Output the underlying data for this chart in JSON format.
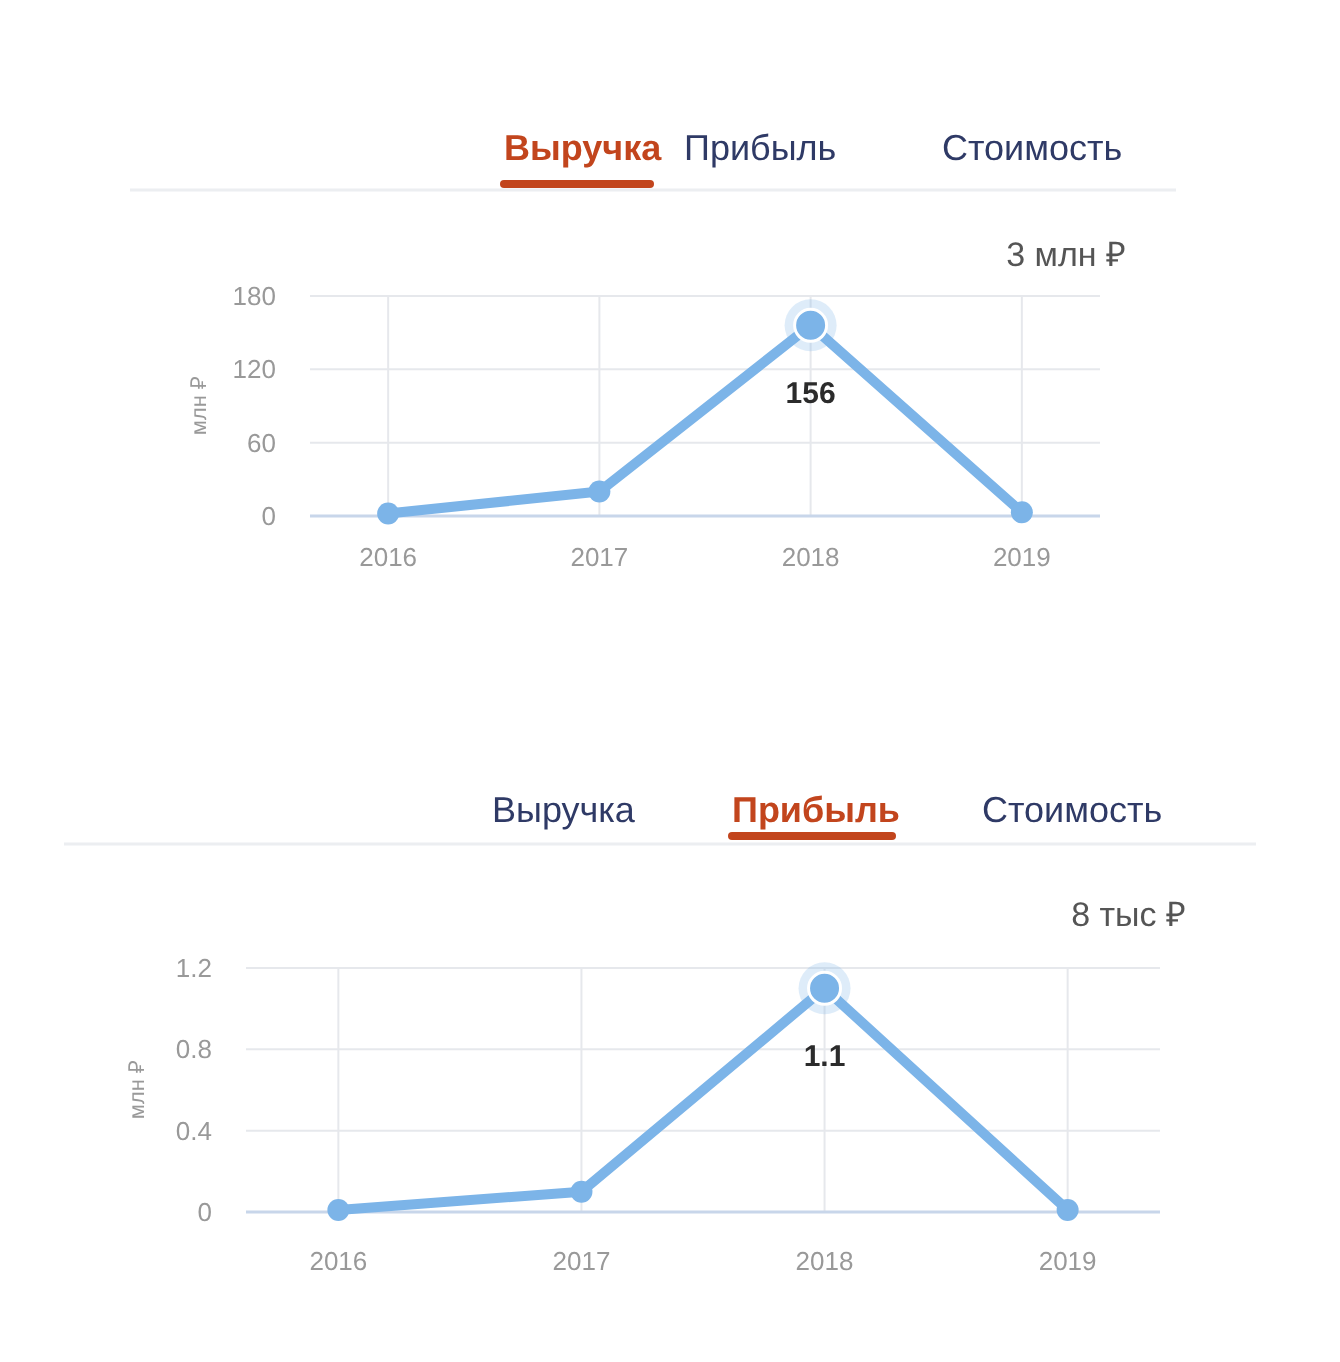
{
  "chart_data": [
    {
      "type": "line",
      "subtitle": "3 млн ₽",
      "annotations": [
        "Выручка",
        "Прибыль",
        "Стоимость"
      ],
      "ylabel": "млн ₽",
      "categories": [
        "2016",
        "2017",
        "2018",
        "2019"
      ],
      "series": [
        {
          "color": "#7cb4e8",
          "values": [
            2,
            20,
            156,
            3
          ],
          "value_labels": [
            null,
            null,
            "156",
            null
          ]
        }
      ],
      "ylim": [
        0,
        180
      ],
      "yticks": [
        0,
        60,
        120,
        180
      ],
      "grid": true,
      "marker": "circle"
    },
    {
      "type": "line",
      "subtitle": "8 тыс ₽",
      "annotations": [
        "Выручка",
        "Прибыль",
        "Стоимость"
      ],
      "ylabel": "млн ₽",
      "categories": [
        "2016",
        "2017",
        "2018",
        "2019"
      ],
      "series": [
        {
          "color": "#7cb4e8",
          "values": [
            0.01,
            0.1,
            1.1,
            0.01
          ],
          "value_labels": [
            null,
            null,
            "1.1",
            null
          ]
        }
      ],
      "ylim": [
        0,
        1.2
      ],
      "yticks": [
        0,
        0.4,
        0.8,
        1.2
      ],
      "grid": true,
      "marker": "circle"
    }
  ]
}
